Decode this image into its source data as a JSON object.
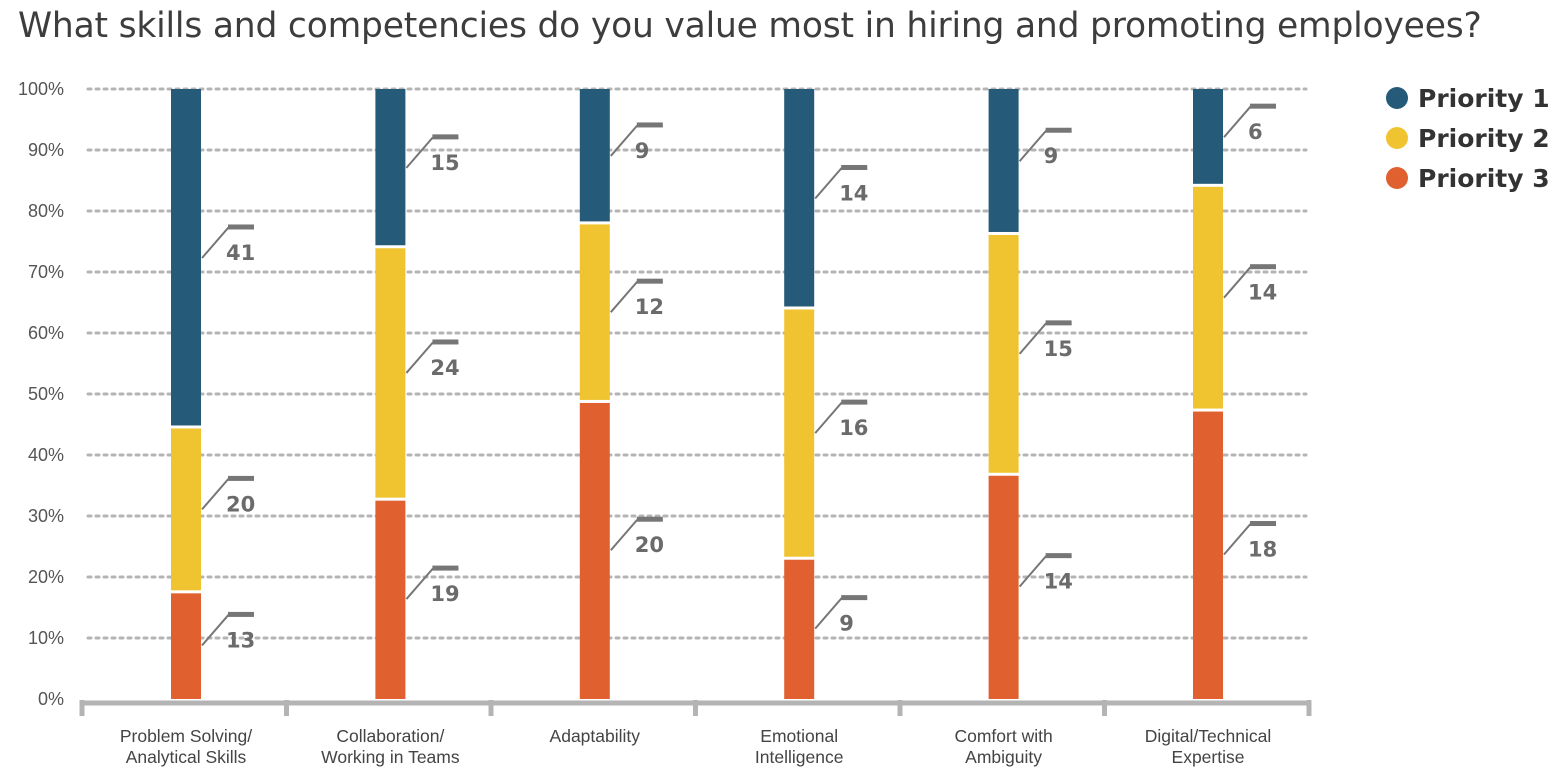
{
  "chart_data": {
    "type": "bar",
    "stacked": true,
    "normalized": true,
    "title": "What skills and competencies do you value most in hiring and promoting employees?",
    "xlabel": "",
    "ylabel": "",
    "ylim": [
      0,
      100
    ],
    "yticks": [
      "0%",
      "10%",
      "20%",
      "30%",
      "40%",
      "50%",
      "60%",
      "70%",
      "80%",
      "90%",
      "100%"
    ],
    "grid": true,
    "legend_position": "top-right",
    "categories": [
      [
        "Problem Solving/",
        "Analytical Skills"
      ],
      [
        "Collaboration/",
        "Working in Teams"
      ],
      [
        "Adaptability"
      ],
      [
        "Emotional",
        "Intelligence"
      ],
      [
        "Comfort with",
        "Ambiguity"
      ],
      [
        "Digital/Technical",
        "Expertise"
      ]
    ],
    "series": [
      {
        "name": "Priority 3",
        "color": "#e06030",
        "values": [
          13,
          19,
          20,
          9,
          14,
          18
        ]
      },
      {
        "name": "Priority 2",
        "color": "#f0c430",
        "values": [
          20,
          24,
          12,
          16,
          15,
          14
        ]
      },
      {
        "name": "Priority 1",
        "color": "#255a78",
        "values": [
          41,
          15,
          9,
          14,
          9,
          6
        ]
      }
    ],
    "legend_order": [
      "Priority 1",
      "Priority 2",
      "Priority 3"
    ]
  }
}
